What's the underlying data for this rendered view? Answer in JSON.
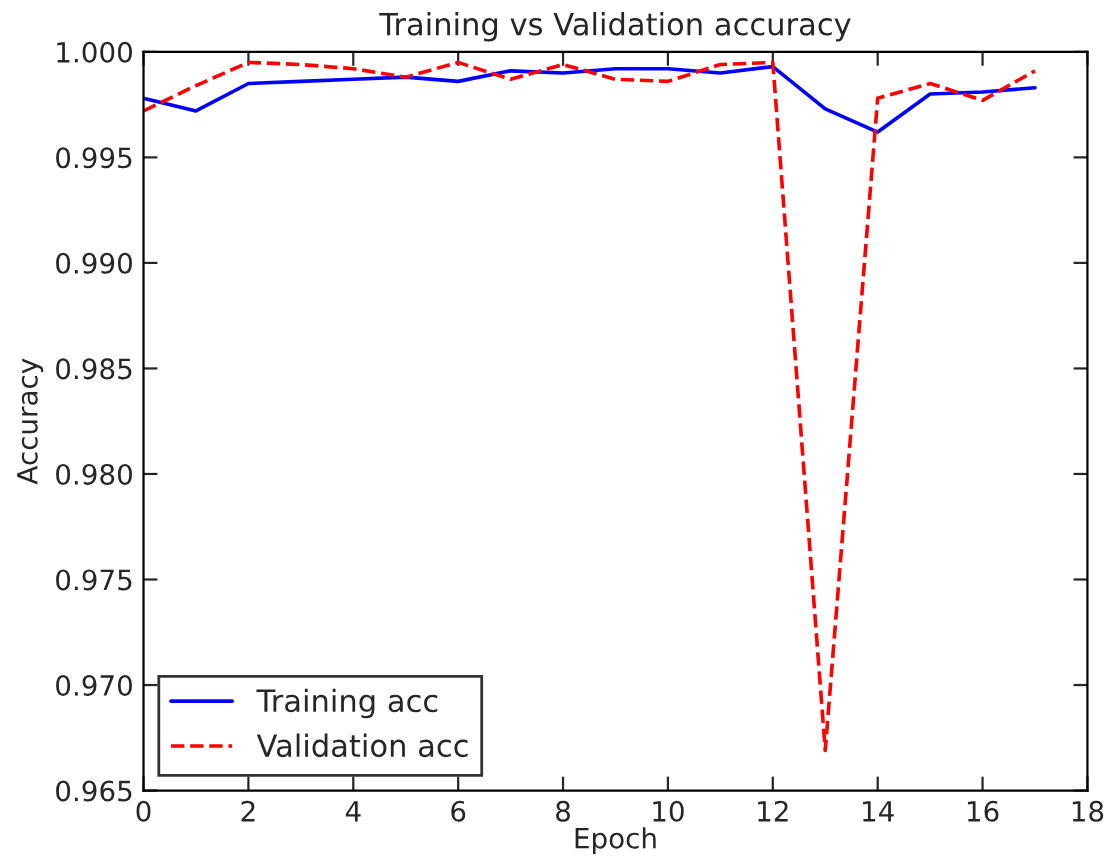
{
  "chart_data": {
    "type": "line",
    "title": "Training vs Validation accuracy",
    "xlabel": "Epoch",
    "ylabel": "Accuracy",
    "x": [
      0,
      1,
      2,
      3,
      4,
      5,
      6,
      7,
      8,
      9,
      10,
      11,
      12,
      13,
      14,
      15,
      16,
      17
    ],
    "series": [
      {
        "name": "Training acc",
        "color": "#0000ff",
        "line_style": "solid",
        "values": [
          0.9978,
          0.9972,
          0.9985,
          0.9986,
          0.9987,
          0.9988,
          0.9986,
          0.9991,
          0.999,
          0.9992,
          0.9992,
          0.999,
          0.9993,
          0.9973,
          0.9962,
          0.998,
          0.9981,
          0.9983
        ]
      },
      {
        "name": "Validation acc",
        "color": "#ff0000",
        "line_style": "dashed",
        "values": [
          0.9972,
          0.9984,
          0.9995,
          0.9994,
          0.9992,
          0.9988,
          0.9995,
          0.9987,
          0.9994,
          0.9987,
          0.9986,
          0.9994,
          0.9995,
          0.9669,
          0.9978,
          0.9985,
          0.9977,
          0.9991
        ]
      }
    ],
    "xlim": [
      0,
      18
    ],
    "xticks": [
      0,
      2,
      4,
      6,
      8,
      10,
      12,
      14,
      16,
      18
    ],
    "ylim": [
      0.965,
      1.0
    ],
    "yticks": [
      {
        "value": 0.965,
        "label": "0.965"
      },
      {
        "value": 0.97,
        "label": "0.970"
      },
      {
        "value": 0.975,
        "label": "0.975"
      },
      {
        "value": 0.98,
        "label": "0.980"
      },
      {
        "value": 0.985,
        "label": "0.985"
      },
      {
        "value": 0.99,
        "label": "0.990"
      },
      {
        "value": 0.995,
        "label": "0.995"
      },
      {
        "value": 1.0,
        "label": "1.000"
      }
    ],
    "grid": false,
    "legend": "bottom left"
  }
}
